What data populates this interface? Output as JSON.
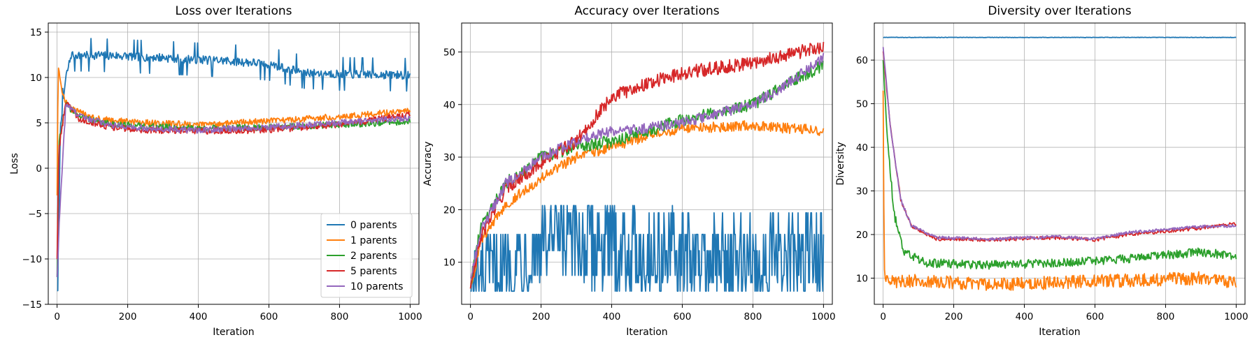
{
  "colors": {
    "series": [
      "#1f77b4",
      "#ff7f0e",
      "#2ca02c",
      "#d62728",
      "#9467bd"
    ],
    "grid": "#b0b0b0",
    "axis": "#000000"
  },
  "chart_data": [
    {
      "type": "line",
      "title": "Loss over Iterations",
      "xlabel": "Iteration",
      "ylabel": "Loss",
      "xlim": [
        -25,
        1025
      ],
      "ylim": [
        -15,
        16
      ],
      "xticks": [
        0,
        200,
        400,
        600,
        800,
        1000
      ],
      "yticks": [
        -15,
        -10,
        -5,
        0,
        5,
        10,
        15
      ],
      "grid": true,
      "legend": {
        "placement": "lower-right",
        "entries": [
          "0 parents",
          "1 parents",
          "2 parents",
          "5 parents",
          "10 parents"
        ]
      },
      "series": [
        {
          "name": "0 parents",
          "color": "#1f77b4",
          "noise": 1.0,
          "style": "jumpy",
          "points": [
            [
              0,
              -13.5
            ],
            [
              10,
              5
            ],
            [
              25,
              10
            ],
            [
              40,
              12.5
            ],
            [
              100,
              12.5
            ],
            [
              300,
              12.2
            ],
            [
              500,
              11.8
            ],
            [
              600,
              11.5
            ],
            [
              700,
              10.6
            ],
            [
              800,
              10.4
            ],
            [
              1000,
              10.3
            ]
          ]
        },
        {
          "name": "1 parents",
          "color": "#ff7f0e",
          "noise": 0.35,
          "points": [
            [
              0,
              -3
            ],
            [
              3,
              11.5
            ],
            [
              15,
              8
            ],
            [
              40,
              6.5
            ],
            [
              120,
              5.4
            ],
            [
              250,
              5
            ],
            [
              400,
              4.8
            ],
            [
              500,
              5
            ],
            [
              600,
              5.2
            ],
            [
              800,
              5.7
            ],
            [
              1000,
              6.3
            ]
          ]
        },
        {
          "name": "2 parents",
          "color": "#2ca02c",
          "noise": 0.35,
          "points": [
            [
              0,
              -12
            ],
            [
              5,
              3
            ],
            [
              25,
              7
            ],
            [
              60,
              5.8
            ],
            [
              120,
              5
            ],
            [
              250,
              4.6
            ],
            [
              400,
              4.4
            ],
            [
              600,
              4.5
            ],
            [
              800,
              4.8
            ],
            [
              1000,
              5.1
            ]
          ]
        },
        {
          "name": "5 parents",
          "color": "#d62728",
          "noise": 0.35,
          "points": [
            [
              0,
              -10
            ],
            [
              5,
              2
            ],
            [
              25,
              7.5
            ],
            [
              60,
              5.5
            ],
            [
              150,
              4.5
            ],
            [
              250,
              4.2
            ],
            [
              400,
              4.1
            ],
            [
              600,
              4.2
            ],
            [
              800,
              4.8
            ],
            [
              1000,
              5.9
            ]
          ]
        },
        {
          "name": "10 parents",
          "color": "#9467bd",
          "noise": 0.35,
          "points": [
            [
              0,
              -12
            ],
            [
              6,
              -6
            ],
            [
              25,
              7.2
            ],
            [
              60,
              5.8
            ],
            [
              150,
              4.8
            ],
            [
              250,
              4.4
            ],
            [
              400,
              4.2
            ],
            [
              600,
              4.5
            ],
            [
              800,
              5
            ],
            [
              1000,
              5.5
            ]
          ]
        }
      ]
    },
    {
      "type": "line",
      "title": "Accuracy over Iterations",
      "xlabel": "Iteration",
      "ylabel": "Accuracy",
      "xlim": [
        -25,
        1025
      ],
      "ylim": [
        2,
        55.5
      ],
      "xticks": [
        0,
        200,
        400,
        600,
        800,
        1000
      ],
      "yticks": [
        10,
        20,
        30,
        40,
        50
      ],
      "grid": true,
      "series": [
        {
          "name": "0 parents",
          "color": "#1f77b4",
          "noise": 0,
          "style": "levels",
          "levels": [
            4.5,
            7.5,
            12.2,
            15.3,
            19.4,
            20.8,
            6.1
          ],
          "points": [
            [
              0,
              4.5
            ],
            [
              200,
              14
            ],
            [
              400,
              13
            ],
            [
              600,
              11
            ],
            [
              800,
              10
            ],
            [
              1000,
              11
            ]
          ]
        },
        {
          "name": "1 parents",
          "color": "#ff7f0e",
          "noise": 1.0,
          "points": [
            [
              0,
              5
            ],
            [
              30,
              14
            ],
            [
              100,
              21
            ],
            [
              200,
              26
            ],
            [
              300,
              30
            ],
            [
              400,
              32
            ],
            [
              500,
              34
            ],
            [
              600,
              35.5
            ],
            [
              800,
              36
            ],
            [
              1000,
              35
            ]
          ]
        },
        {
          "name": "2 parents",
          "color": "#2ca02c",
          "noise": 1.2,
          "points": [
            [
              0,
              6
            ],
            [
              30,
              17
            ],
            [
              100,
              25
            ],
            [
              200,
              30
            ],
            [
              300,
              32
            ],
            [
              400,
              33
            ],
            [
              500,
              35
            ],
            [
              600,
              37
            ],
            [
              800,
              40
            ],
            [
              900,
              44
            ],
            [
              1000,
              47.5
            ]
          ]
        },
        {
          "name": "5 parents",
          "color": "#d62728",
          "noise": 1.3,
          "points": [
            [
              0,
              5
            ],
            [
              30,
              15
            ],
            [
              100,
              24
            ],
            [
              200,
              29
            ],
            [
              300,
              33
            ],
            [
              400,
              41.5
            ],
            [
              500,
              44
            ],
            [
              600,
              46
            ],
            [
              800,
              48
            ],
            [
              1000,
              51
            ]
          ]
        },
        {
          "name": "10 parents",
          "color": "#9467bd",
          "noise": 1.0,
          "points": [
            [
              0,
              7
            ],
            [
              30,
              16
            ],
            [
              100,
              25
            ],
            [
              200,
              30
            ],
            [
              300,
              33
            ],
            [
              400,
              35
            ],
            [
              500,
              35.5
            ],
            [
              600,
              36.5
            ],
            [
              800,
              40
            ],
            [
              900,
              44
            ],
            [
              1000,
              49
            ]
          ]
        }
      ]
    },
    {
      "type": "line",
      "title": "Diversity over Iterations",
      "xlabel": "Iteration",
      "ylabel": "Diversity",
      "xlim": [
        -25,
        1025
      ],
      "ylim": [
        4,
        68.5
      ],
      "xticks": [
        0,
        200,
        400,
        600,
        800,
        1000
      ],
      "yticks": [
        10,
        20,
        30,
        40,
        50,
        60
      ],
      "grid": true,
      "series": [
        {
          "name": "0 parents",
          "color": "#1f77b4",
          "noise": 0.05,
          "points": [
            [
              0,
              65.2
            ],
            [
              1000,
              65.2
            ]
          ]
        },
        {
          "name": "1 parents",
          "color": "#ff7f0e",
          "noise": 1.5,
          "points": [
            [
              0,
              53
            ],
            [
              3,
              12
            ],
            [
              15,
              9
            ],
            [
              100,
              9.5
            ],
            [
              300,
              8.5
            ],
            [
              500,
              9
            ],
            [
              700,
              9.5
            ],
            [
              900,
              10
            ],
            [
              1000,
              9
            ]
          ]
        },
        {
          "name": "2 parents",
          "color": "#2ca02c",
          "noise": 1.0,
          "points": [
            [
              0,
              60
            ],
            [
              10,
              45
            ],
            [
              30,
              25
            ],
            [
              60,
              16
            ],
            [
              120,
              13.5
            ],
            [
              300,
              13
            ],
            [
              500,
              13.5
            ],
            [
              700,
              14.5
            ],
            [
              900,
              16
            ],
            [
              1000,
              15
            ]
          ]
        },
        {
          "name": "5 parents",
          "color": "#d62728",
          "noise": 0.4,
          "points": [
            [
              0,
              62
            ],
            [
              20,
              45
            ],
            [
              50,
              28
            ],
            [
              80,
              22
            ],
            [
              150,
              19
            ],
            [
              300,
              18.8
            ],
            [
              500,
              19.3
            ],
            [
              600,
              18.8
            ],
            [
              700,
              20
            ],
            [
              900,
              21.5
            ],
            [
              1000,
              22.5
            ]
          ]
        },
        {
          "name": "10 parents",
          "color": "#9467bd",
          "noise": 0.35,
          "points": [
            [
              0,
              63
            ],
            [
              20,
              45
            ],
            [
              50,
              28
            ],
            [
              80,
              22
            ],
            [
              150,
              19.3
            ],
            [
              300,
              19
            ],
            [
              500,
              19.5
            ],
            [
              600,
              19
            ],
            [
              700,
              20.5
            ],
            [
              900,
              21.8
            ],
            [
              1000,
              22
            ]
          ]
        }
      ]
    }
  ]
}
